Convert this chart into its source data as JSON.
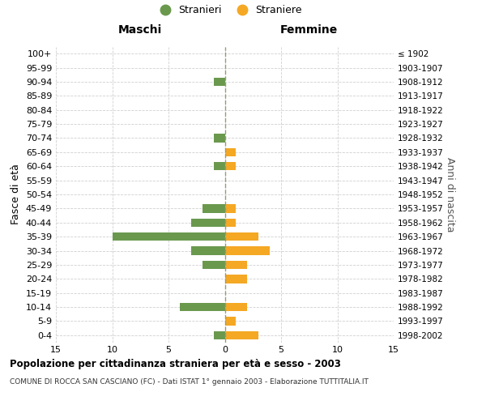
{
  "age_groups": [
    "100+",
    "95-99",
    "90-94",
    "85-89",
    "80-84",
    "75-79",
    "70-74",
    "65-69",
    "60-64",
    "55-59",
    "50-54",
    "45-49",
    "40-44",
    "35-39",
    "30-34",
    "25-29",
    "20-24",
    "15-19",
    "10-14",
    "5-9",
    "0-4"
  ],
  "birth_years": [
    "≤ 1902",
    "1903-1907",
    "1908-1912",
    "1913-1917",
    "1918-1922",
    "1923-1927",
    "1928-1932",
    "1933-1937",
    "1938-1942",
    "1943-1947",
    "1948-1952",
    "1953-1957",
    "1958-1962",
    "1963-1967",
    "1968-1972",
    "1973-1977",
    "1978-1982",
    "1983-1987",
    "1988-1992",
    "1993-1997",
    "1998-2002"
  ],
  "males": [
    0,
    0,
    1,
    0,
    0,
    0,
    1,
    0,
    1,
    0,
    0,
    2,
    3,
    10,
    3,
    2,
    0,
    0,
    4,
    0,
    1
  ],
  "females": [
    0,
    0,
    0,
    0,
    0,
    0,
    0,
    1,
    1,
    0,
    0,
    1,
    1,
    3,
    4,
    2,
    2,
    0,
    2,
    1,
    3
  ],
  "male_color": "#6a994e",
  "female_color": "#f4a824",
  "background_color": "#ffffff",
  "grid_color": "#d0d0d0",
  "center_line_color": "#999977",
  "xlim": 15,
  "title1": "Popolazione per cittadinanza straniera per età e sesso - 2003",
  "title2": "COMUNE DI ROCCA SAN CASCIANO (FC) - Dati ISTAT 1° gennaio 2003 - Elaborazione TUTTITALIA.IT",
  "left_header": "Maschi",
  "right_header": "Femmine",
  "ylabel": "Fasce di età",
  "ylabel2": "Anni di nascita",
  "legend_male": "Stranieri",
  "legend_female": "Straniere",
  "xticks": [
    -15,
    -10,
    -5,
    0,
    5,
    10,
    15
  ],
  "xticklabels": [
    "15",
    "10",
    "5",
    "0",
    "5",
    "10",
    "15"
  ]
}
